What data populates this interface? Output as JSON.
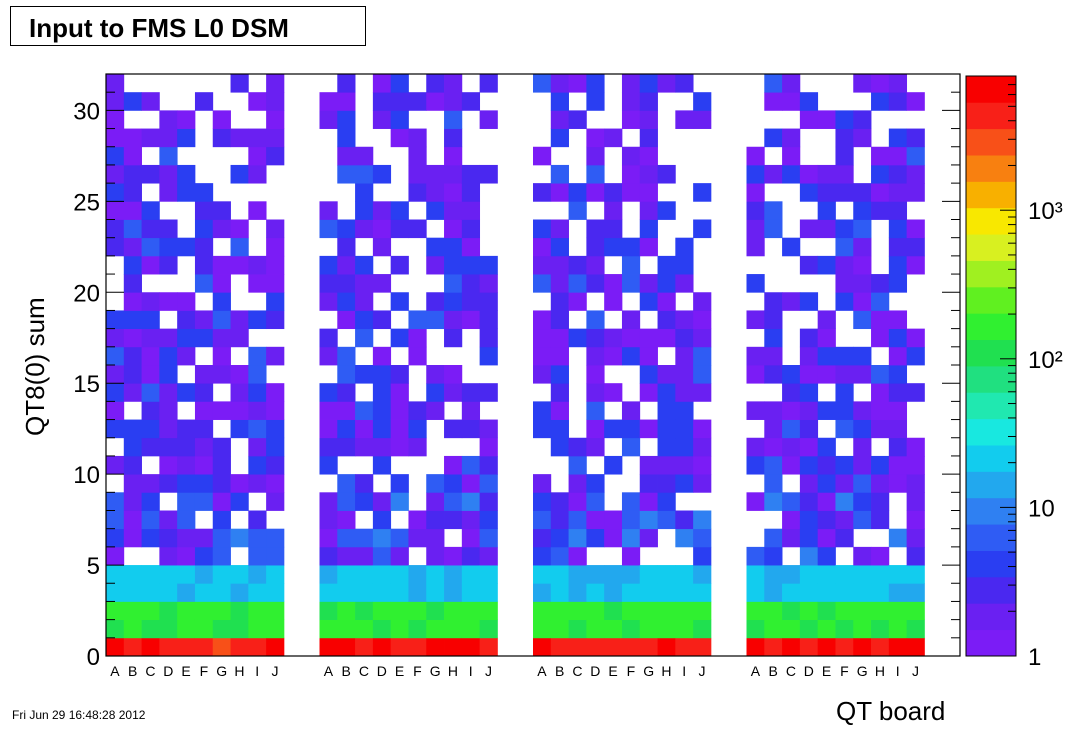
{
  "chart_data": {
    "type": "heatmap",
    "title": "Input to FMS L0 DSM",
    "xlabel": "QT board",
    "ylabel": "QT8(0) sum",
    "ylim": [
      0,
      32
    ],
    "y_ticks": [
      "0",
      "5",
      "10",
      "15",
      "20",
      "25",
      "30"
    ],
    "z_scale": "log",
    "z_range": [
      1,
      8000
    ],
    "z_ticks": [
      "1",
      "10",
      "10²",
      "10³"
    ],
    "n_xbins": 48,
    "x_groups": [
      {
        "labels": [
          "A",
          "B",
          "C",
          "D",
          "E",
          "F",
          "G",
          "H",
          "I",
          "J"
        ]
      },
      {
        "labels": [
          "A",
          "B",
          "C",
          "D",
          "E",
          "F",
          "G",
          "H",
          "I",
          "J"
        ]
      },
      {
        "labels": [
          "A",
          "B",
          "C",
          "D",
          "E",
          "F",
          "G",
          "H",
          "I",
          "J"
        ]
      },
      {
        "labels": [
          "A",
          "B",
          "C",
          "D",
          "E",
          "F",
          "G",
          "H",
          "I",
          "J"
        ]
      }
    ],
    "bin_value_bands": [
      {
        "y_range": [
          0,
          1
        ],
        "value": 5000
      },
      {
        "y_range": [
          1,
          3
        ],
        "value": 150
      },
      {
        "y_range": [
          3,
          5
        ],
        "value": 20
      },
      {
        "y_range": [
          5,
          32
        ],
        "value_range": [
          1,
          10
        ],
        "empty_bins": "many"
      }
    ],
    "empty_columns": [
      10,
      11,
      22,
      23,
      34,
      35,
      46,
      47
    ]
  },
  "footer": {
    "timestamp": "Fri Jun 29 16:48:28 2012"
  }
}
